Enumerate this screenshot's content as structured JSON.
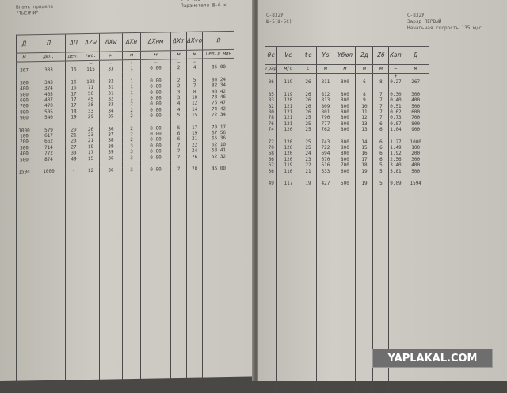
{
  "left_page": {
    "header_left": "Бланк прицела\n\"ТЫСЯЧИ\"",
    "header_right": "... Н8Ш\nПараметели Ш-6 к",
    "columns": [
      "Д",
      "П",
      "ΔП",
      "ΔZw",
      "ΔXw",
      "ΔXн",
      "ΔXнм",
      "ΔXт",
      "ΔXvo",
      "Ω"
    ],
    "units": [
      "м",
      "дел.",
      "дел.",
      "тыс.",
      "м",
      "м",
      "м",
      "м",
      "м",
      "цел.д мин"
    ],
    "signs": [
      "",
      "",
      "",
      "—",
      "—",
      "+",
      "—",
      "—",
      "—",
      ""
    ],
    "rows": [
      [
        "267",
        "333",
        "16",
        "115",
        "33",
        "1",
        "0.00",
        "2",
        "4",
        "85 00"
      ],
      null,
      [
        "300",
        "343",
        "16",
        "102",
        "32",
        "1",
        "0.00",
        "2",
        "5",
        "84 24"
      ],
      [
        "400",
        "374",
        "16",
        "71",
        "31",
        "1",
        "0.00",
        "2",
        "7",
        "82 34"
      ],
      [
        "500",
        "405",
        "17",
        "56",
        "31",
        "1",
        "0.00",
        "3",
        "8",
        "80 42"
      ],
      [
        "600",
        "437",
        "17",
        "45",
        "32",
        "1",
        "0.00",
        "3",
        "10",
        "78 46"
      ],
      [
        "700",
        "470",
        "17",
        "38",
        "33",
        "2",
        "0.00",
        "4",
        "12",
        "76 47"
      ],
      [
        "800",
        "505",
        "18",
        "33",
        "34",
        "2",
        "0.00",
        "4",
        "14",
        "74 42"
      ],
      [
        "900",
        "540",
        "19",
        "29",
        "35",
        "2",
        "0.00",
        "5",
        "15",
        "72 34"
      ],
      null,
      [
        "1000",
        "579",
        "20",
        "26",
        "36",
        "2",
        "0.00",
        "5",
        "17",
        "70 17"
      ],
      [
        "100",
        "617",
        "21",
        "23",
        "37",
        "2",
        "0.00",
        "6",
        "19",
        "67 56"
      ],
      [
        "200",
        "662",
        "23",
        "21",
        "38",
        "2",
        "0.00",
        "6",
        "21",
        "65 36"
      ],
      [
        "300",
        "714",
        "27",
        "19",
        "39",
        "3",
        "0.00",
        "7",
        "22",
        "62 10"
      ],
      [
        "400",
        "772",
        "33",
        "17",
        "39",
        "3",
        "0.00",
        "7",
        "24",
        "58 41"
      ],
      [
        "500",
        "874",
        "49",
        "15",
        "36",
        "3",
        "0.00",
        "7",
        "26",
        "52 32"
      ],
      null,
      [
        "1594",
        "1000",
        "-",
        "12",
        "36",
        "3",
        "0.00",
        "7",
        "28",
        "45 00"
      ]
    ]
  },
  "right_page": {
    "header_left": "С-832У\nШ-5(Ш-5С)",
    "header_right": "С-832У\nЗаряд ПЕРВЫЙ\nНачальная скорость 135 м/с",
    "columns": [
      "θc",
      "Vc",
      "tc",
      "Ys",
      "Yбюл",
      "Zд",
      "Zб",
      "Kвл",
      "Д"
    ],
    "units": [
      "град",
      "м/с",
      "с",
      "м",
      "м",
      "м",
      "м",
      "—",
      "м"
    ],
    "signs": [
      "",
      "",
      "",
      "",
      "",
      "",
      "",
      "+",
      ""
    ],
    "rows": [
      [
        "86",
        "119",
        "26",
        "811",
        "800",
        "6",
        "8",
        "0.27",
        "267"
      ],
      null,
      [
        "85",
        "119",
        "26",
        "812",
        "800",
        "8",
        "7",
        "0.30",
        "300"
      ],
      [
        "83",
        "120",
        "26",
        "813",
        "800",
        "9",
        "7",
        "0.40",
        "400"
      ],
      [
        "82",
        "121",
        "26",
        "809",
        "800",
        "10",
        "7",
        "0.51",
        "500"
      ],
      [
        "80",
        "121",
        "26",
        "801",
        "800",
        "11",
        "7",
        "0.62",
        "600"
      ],
      [
        "78",
        "121",
        "25",
        "790",
        "800",
        "12",
        "7",
        "0.73",
        "700"
      ],
      [
        "76",
        "121",
        "25",
        "777",
        "800",
        "13",
        "6",
        "0.87",
        "800"
      ],
      [
        "74",
        "120",
        "25",
        "762",
        "800",
        "13",
        "6",
        "1.04",
        "900"
      ],
      null,
      [
        "72",
        "120",
        "25",
        "743",
        "800",
        "14",
        "6",
        "1.27",
        "1000"
      ],
      [
        "70",
        "120",
        "25",
        "722",
        "800",
        "15",
        "6",
        "1.49",
        "100"
      ],
      [
        "68",
        "120",
        "24",
        "694",
        "800",
        "16",
        "6",
        "1.92",
        "200"
      ],
      [
        "66",
        "120",
        "23",
        "670",
        "800",
        "17",
        "6",
        "2.56",
        "300"
      ],
      [
        "62",
        "119",
        "22",
        "616",
        "700",
        "18",
        "5",
        "3.40",
        "400"
      ],
      [
        "56",
        "116",
        "21",
        "533",
        "600",
        "19",
        "5",
        "5.81",
        "500"
      ],
      null,
      [
        "49",
        "117",
        "19",
        "427",
        "500",
        "19",
        "5",
        "9.09",
        "1594"
      ]
    ]
  },
  "watermark": "YAPLAKAL.COM"
}
